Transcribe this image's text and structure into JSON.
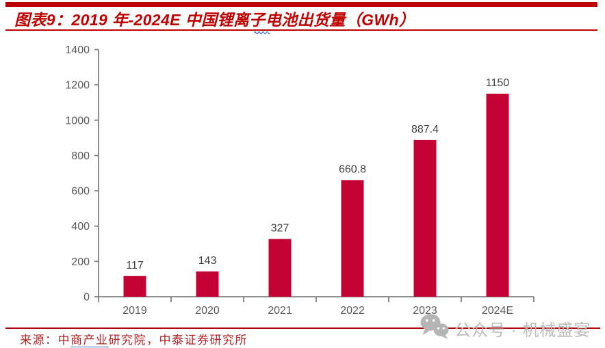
{
  "page": {
    "title": "图表9：2019 年-2024E 中国锂离子电池出货量（GWh）",
    "source": {
      "prefix": "来源：",
      "seg1": "中",
      "underlined": "商产业",
      "seg2": "研究院，中泰证券研究所"
    },
    "watermark": {
      "icon": "wechat-icon",
      "text": "公众号 · 机械盛宴"
    }
  },
  "colors": {
    "bar": "#C40233",
    "title_red": "#C00000",
    "rule_red": "#BE0100",
    "source_red": "#B22222",
    "axis_gray": "#7F7F7F",
    "tick_label_gray": "#595959",
    "value_label_gray": "#404040",
    "watermark_gray": "#BCBCBC",
    "underline_blue": "#3A6BC9"
  },
  "chart_data": {
    "type": "bar",
    "title": "图表9：2019 年-2024E 中国锂离子电池出货量（GWh）",
    "categories": [
      "2019",
      "2020",
      "2021",
      "2022",
      "2023",
      "2024E"
    ],
    "values": [
      117,
      143,
      327,
      660.8,
      887.4,
      1150
    ],
    "value_labels": [
      "117",
      "143",
      "327",
      "660.8",
      "887.4",
      "1150"
    ],
    "xlabel": "",
    "ylabel": "",
    "ylim": [
      0,
      1400
    ],
    "ytick_step": 200,
    "grid": false,
    "legend": "none",
    "bar_color": "#C40233"
  }
}
